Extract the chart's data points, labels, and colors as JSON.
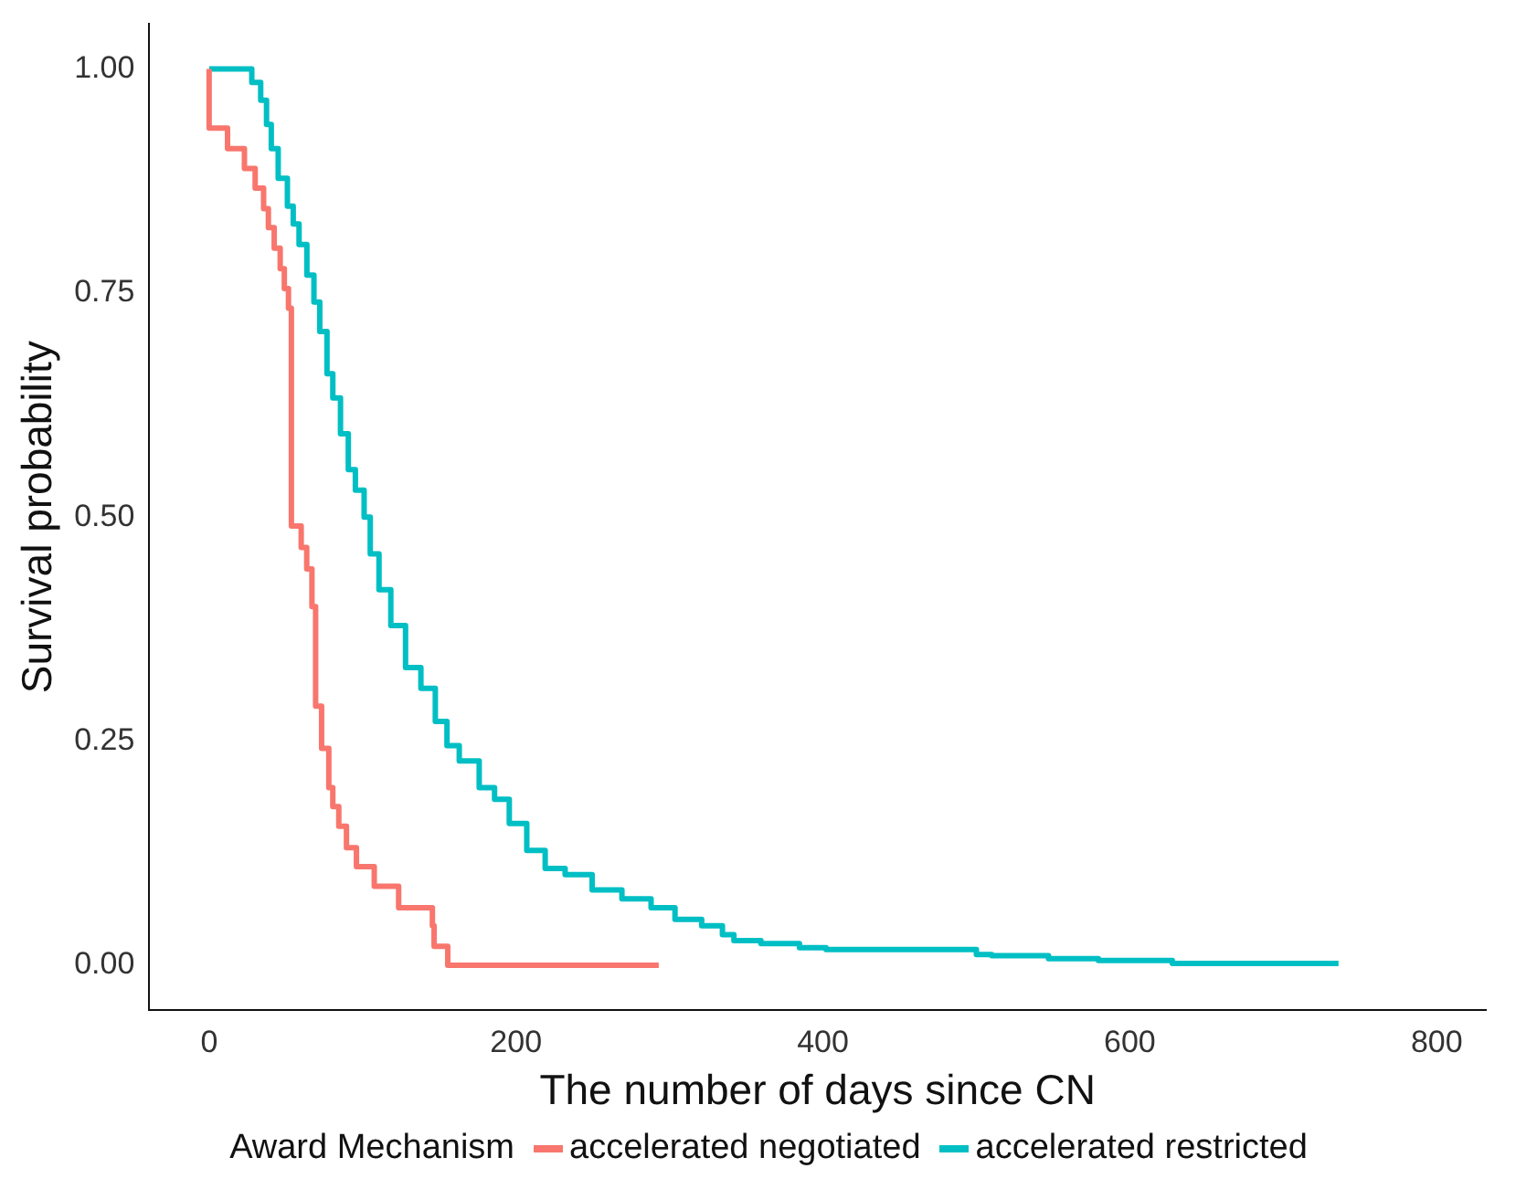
{
  "chart_data": {
    "type": "step",
    "xlabel": "The number of days since CN",
    "ylabel": "Survival probability",
    "legend_title": "Award Mechanism",
    "legend": "bottom",
    "marker": "none",
    "grid": false,
    "xlim": [
      -39,
      832
    ],
    "xticks": [
      0,
      200,
      400,
      600,
      800
    ],
    "ylim": [
      -0.05,
      1.05
    ],
    "yticks": [
      {
        "value": 0,
        "label": "0.00"
      },
      {
        "value": 0.25,
        "label": "0.25"
      },
      {
        "value": 0.5,
        "label": "0.50"
      },
      {
        "value": 0.75,
        "label": "0.75"
      },
      {
        "value": 1,
        "label": "1.00"
      }
    ],
    "series": [
      {
        "name": "accelerated negotiated",
        "color": "#f8766d",
        "x": [
          0,
          12,
          23,
          30,
          35.5,
          38.6,
          42.4,
          46.3,
          49,
          51.7,
          53.6,
          53.6,
          60,
          63.6,
          67,
          69.4,
          69.4,
          73.3,
          78,
          80.6,
          84.5,
          89.5,
          96,
          107.6,
          123.5,
          145.5,
          146.6,
          155.5,
          293
        ],
        "values": [
          1,
          0.934,
          0.911,
          0.889,
          0.867,
          0.844,
          0.823,
          0.8,
          0.777,
          0.755,
          0.733,
          0.556,
          0.49,
          0.466,
          0.442,
          0.4,
          0.31,
          0.289,
          0.242,
          0.198,
          0.177,
          0.155,
          0.131,
          0.11,
          0.088,
          0.064,
          0.044,
          0.021,
          0
        ]
      },
      {
        "name": "accelerated restricted",
        "color": "#00bfc4",
        "x": [
          0,
          27.8,
          33.6,
          37.4,
          40.5,
          45,
          51,
          54.8,
          58.6,
          63.7,
          68.3,
          72.1,
          76.8,
          80.6,
          85.6,
          90.7,
          95.3,
          101,
          105,
          110.7,
          118.4,
          128,
          138,
          147.4,
          155,
          163,
          176,
          186,
          195.6,
          207,
          219,
          232,
          249.6,
          269,
          288,
          303.6,
          321,
          334.5,
          342,
          359.6,
          384.7,
          402,
          500,
          510,
          547,
          579.5,
          627.7,
          678,
          736
        ],
        "values": [
          1,
          1,
          0.985,
          0.965,
          0.938,
          0.911,
          0.878,
          0.847,
          0.827,
          0.804,
          0.77,
          0.74,
          0.707,
          0.66,
          0.633,
          0.593,
          0.553,
          0.53,
          0.5,
          0.459,
          0.419,
          0.379,
          0.332,
          0.309,
          0.272,
          0.245,
          0.228,
          0.198,
          0.185,
          0.158,
          0.128,
          0.108,
          0.101,
          0.084,
          0.074,
          0.064,
          0.051,
          0.044,
          0.034,
          0.0275,
          0.024,
          0.0195,
          0.0175,
          0.012,
          0.0107,
          0.0074,
          0.0054,
          0.002,
          0.002
        ]
      }
    ]
  }
}
